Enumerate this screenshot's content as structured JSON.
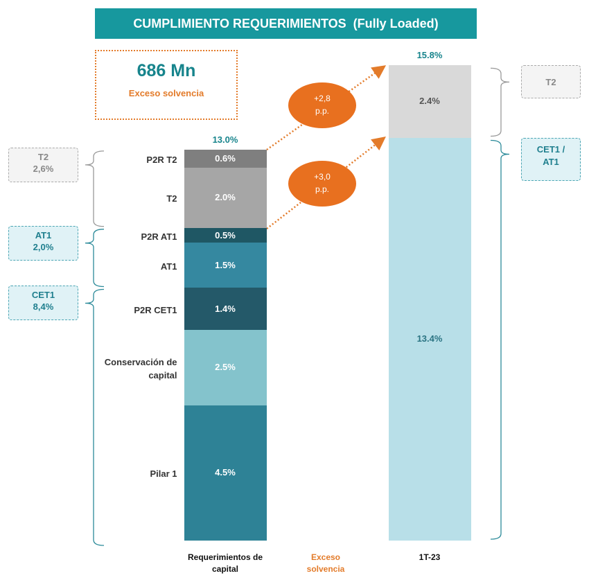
{
  "chart_data": {
    "type": "stacked_bar",
    "title": "CUMPLIMIENTO REQUERIMIENTOS  (Fully Loaded)",
    "ylim": [
      0,
      16.5
    ],
    "categories": [
      "Requerimientos de capital",
      "Exceso solvencia",
      "1T-23"
    ],
    "bars": [
      {
        "index": 0,
        "total": 13.0,
        "total_label": "13.0%",
        "segments": [
          {
            "name": "Pilar 1",
            "value": 4.5,
            "value_label": "4.5%",
            "color": "#2e8296"
          },
          {
            "name": "Conservación de capital",
            "value": 2.5,
            "value_label": "2.5%",
            "color": "#84c3cc"
          },
          {
            "name": "P2R CET1",
            "value": 1.4,
            "value_label": "1.4%",
            "color": "#245969"
          },
          {
            "name": "AT1",
            "value": 1.5,
            "value_label": "1.5%",
            "color": "#3588a0"
          },
          {
            "name": "P2R AT1",
            "value": 0.5,
            "value_label": "0.5%",
            "color": "#1f5764"
          },
          {
            "name": "T2",
            "value": 2.0,
            "value_label": "2.0%",
            "color": "#a6a6a6"
          },
          {
            "name": "P2R T2",
            "value": 0.6,
            "value_label": "0.6%",
            "color": "#7f7f7f"
          }
        ]
      },
      {
        "index": 2,
        "total": 15.8,
        "total_label": "15.8%",
        "segments": [
          {
            "value": 13.4,
            "value_label": "13.4%",
            "color": "#b8dfe8"
          },
          {
            "value": 2.4,
            "value_label": "2.4%",
            "color": "#d9d9d9"
          }
        ]
      }
    ],
    "left_brackets": [
      {
        "label": "CET1",
        "value": 8.4,
        "value_label": "8,4%"
      },
      {
        "label": "AT1",
        "value": 2.0,
        "value_label": "2,0%"
      },
      {
        "label": "T2",
        "value": 2.6,
        "value_label": "2,6%"
      }
    ],
    "right_brackets": [
      "CET1 / AT1",
      "T2"
    ],
    "arrows": [
      {
        "value": 2.8,
        "label": "+2,8 p.p."
      },
      {
        "value": 3.0,
        "label": "+3,0 p.p."
      }
    ],
    "excess": {
      "value": 686,
      "value_label": "686 Mn",
      "label": "Exceso solvencia"
    }
  }
}
